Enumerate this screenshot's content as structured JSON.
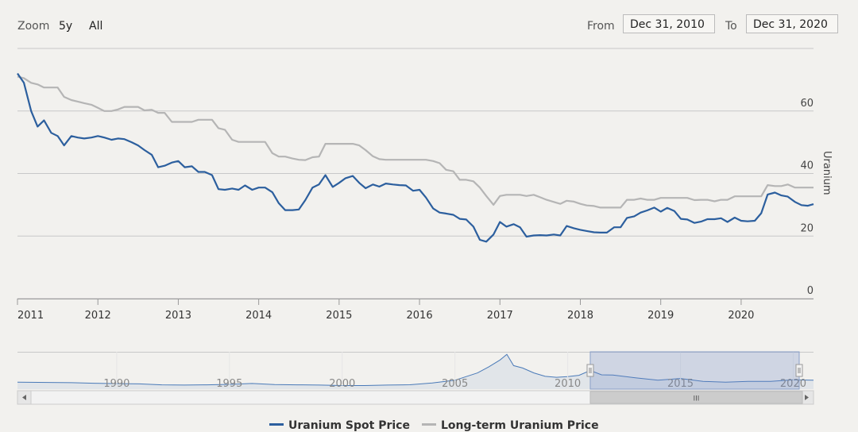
{
  "toolbar": {
    "zoom_label": "Zoom",
    "zoom_options": [
      "5y",
      "All"
    ],
    "from_label": "From",
    "from_value": "Dec 31, 2010",
    "to_label": "To",
    "to_value": "Dec 31, 2020"
  },
  "navigator": {
    "year_labels": [
      "1990",
      "1995",
      "2000",
      "2005",
      "2010",
      "2015",
      "2020"
    ],
    "scrollbar_grip": "III"
  },
  "chart_data": {
    "type": "line",
    "title": "",
    "ylabel": "Uranium",
    "ylim": [
      0,
      80
    ],
    "xlim": [
      2011.0,
      2020.9
    ],
    "x_ticks": [
      "2011",
      "2012",
      "2013",
      "2014",
      "2015",
      "2016",
      "2017",
      "2018",
      "2019",
      "2020"
    ],
    "y_ticks": [
      "0",
      "20",
      "40",
      "60"
    ],
    "legend_position": "bottom-center",
    "series": [
      {
        "name": "Uranium Spot Price",
        "color": "#2c5f9e",
        "points": [
          [
            2011.0,
            72
          ],
          [
            2011.08,
            69
          ],
          [
            2011.17,
            60
          ],
          [
            2011.25,
            55
          ],
          [
            2011.33,
            57
          ],
          [
            2011.42,
            53
          ],
          [
            2011.5,
            52
          ],
          [
            2011.58,
            49
          ],
          [
            2011.67,
            52
          ],
          [
            2011.75,
            51.5
          ],
          [
            2011.83,
            51.2
          ],
          [
            2011.92,
            51.5
          ],
          [
            2012.0,
            52
          ],
          [
            2012.08,
            51.5
          ],
          [
            2012.17,
            50.8
          ],
          [
            2012.25,
            51.2
          ],
          [
            2012.33,
            51
          ],
          [
            2012.42,
            50
          ],
          [
            2012.5,
            49
          ],
          [
            2012.58,
            47.5
          ],
          [
            2012.67,
            46
          ],
          [
            2012.75,
            42
          ],
          [
            2012.83,
            42.5
          ],
          [
            2012.92,
            43.5
          ],
          [
            2013.0,
            44
          ],
          [
            2013.08,
            42
          ],
          [
            2013.17,
            42.3
          ],
          [
            2013.25,
            40.5
          ],
          [
            2013.33,
            40.5
          ],
          [
            2013.42,
            39.5
          ],
          [
            2013.5,
            35
          ],
          [
            2013.58,
            34.8
          ],
          [
            2013.67,
            35.2
          ],
          [
            2013.75,
            34.8
          ],
          [
            2013.83,
            36.2
          ],
          [
            2013.92,
            34.8
          ],
          [
            2014.0,
            35.5
          ],
          [
            2014.08,
            35.5
          ],
          [
            2014.17,
            34
          ],
          [
            2014.25,
            30.5
          ],
          [
            2014.33,
            28.3
          ],
          [
            2014.42,
            28.3
          ],
          [
            2014.5,
            28.5
          ],
          [
            2014.58,
            31.5
          ],
          [
            2014.67,
            35.5
          ],
          [
            2014.75,
            36.5
          ],
          [
            2014.83,
            39.5
          ],
          [
            2014.92,
            35.7
          ],
          [
            2015.0,
            37
          ],
          [
            2015.08,
            38.5
          ],
          [
            2015.17,
            39.2
          ],
          [
            2015.25,
            37
          ],
          [
            2015.33,
            35.3
          ],
          [
            2015.42,
            36.5
          ],
          [
            2015.5,
            35.8
          ],
          [
            2015.58,
            36.8
          ],
          [
            2015.67,
            36.5
          ],
          [
            2015.75,
            36.3
          ],
          [
            2015.83,
            36.2
          ],
          [
            2015.92,
            34.5
          ],
          [
            2016.0,
            34.8
          ],
          [
            2016.08,
            32.3
          ],
          [
            2016.17,
            28.8
          ],
          [
            2016.25,
            27.5
          ],
          [
            2016.33,
            27.2
          ],
          [
            2016.42,
            26.8
          ],
          [
            2016.5,
            25.5
          ],
          [
            2016.58,
            25.3
          ],
          [
            2016.67,
            23
          ],
          [
            2016.75,
            18.8
          ],
          [
            2016.83,
            18.2
          ],
          [
            2016.92,
            20.5
          ],
          [
            2017.0,
            24.5
          ],
          [
            2017.08,
            23
          ],
          [
            2017.17,
            23.8
          ],
          [
            2017.25,
            22.8
          ],
          [
            2017.33,
            19.8
          ],
          [
            2017.42,
            20.2
          ],
          [
            2017.5,
            20.3
          ],
          [
            2017.58,
            20.2
          ],
          [
            2017.67,
            20.5
          ],
          [
            2017.75,
            20.2
          ],
          [
            2017.83,
            23.2
          ],
          [
            2017.92,
            22.5
          ],
          [
            2018.0,
            22
          ],
          [
            2018.08,
            21.6
          ],
          [
            2018.17,
            21.2
          ],
          [
            2018.25,
            21.1
          ],
          [
            2018.33,
            21.1
          ],
          [
            2018.42,
            22.8
          ],
          [
            2018.5,
            22.8
          ],
          [
            2018.58,
            25.8
          ],
          [
            2018.67,
            26.3
          ],
          [
            2018.75,
            27.5
          ],
          [
            2018.83,
            28.2
          ],
          [
            2018.92,
            29.1
          ],
          [
            2019.0,
            27.8
          ],
          [
            2019.08,
            29
          ],
          [
            2019.17,
            28
          ],
          [
            2019.25,
            25.5
          ],
          [
            2019.33,
            25.3
          ],
          [
            2019.42,
            24.2
          ],
          [
            2019.5,
            24.6
          ],
          [
            2019.58,
            25.4
          ],
          [
            2019.67,
            25.4
          ],
          [
            2019.75,
            25.7
          ],
          [
            2019.83,
            24.5
          ],
          [
            2019.92,
            25.9
          ],
          [
            2020.0,
            24.9
          ],
          [
            2020.08,
            24.7
          ],
          [
            2020.17,
            24.9
          ],
          [
            2020.25,
            27.3
          ],
          [
            2020.33,
            33.3
          ],
          [
            2020.42,
            33.9
          ],
          [
            2020.5,
            33
          ],
          [
            2020.58,
            32.6
          ],
          [
            2020.67,
            30.9
          ],
          [
            2020.75,
            29.9
          ],
          [
            2020.83,
            29.7
          ],
          [
            2020.9,
            30.2
          ]
        ]
      },
      {
        "name": "Long-term Uranium Price",
        "color": "#b5b5b5",
        "points": [
          [
            2011.0,
            71
          ],
          [
            2011.08,
            70.5
          ],
          [
            2011.17,
            69
          ],
          [
            2011.25,
            68.5
          ],
          [
            2011.33,
            67.5
          ],
          [
            2011.42,
            67.5
          ],
          [
            2011.5,
            67.5
          ],
          [
            2011.58,
            64.5
          ],
          [
            2011.67,
            63.5
          ],
          [
            2011.75,
            63
          ],
          [
            2011.83,
            62.5
          ],
          [
            2011.92,
            62
          ],
          [
            2012.0,
            61
          ],
          [
            2012.08,
            60
          ],
          [
            2012.17,
            60
          ],
          [
            2012.25,
            60.5
          ],
          [
            2012.33,
            61.3
          ],
          [
            2012.42,
            61.3
          ],
          [
            2012.5,
            61.3
          ],
          [
            2012.58,
            60.2
          ],
          [
            2012.67,
            60.4
          ],
          [
            2012.75,
            59.4
          ],
          [
            2012.83,
            59.4
          ],
          [
            2012.92,
            56.5
          ],
          [
            2013.0,
            56.5
          ],
          [
            2013.08,
            56.5
          ],
          [
            2013.17,
            56.5
          ],
          [
            2013.25,
            57.2
          ],
          [
            2013.33,
            57.2
          ],
          [
            2013.42,
            57.2
          ],
          [
            2013.5,
            54.5
          ],
          [
            2013.58,
            54
          ],
          [
            2013.67,
            50.8
          ],
          [
            2013.75,
            50.1
          ],
          [
            2013.83,
            50.1
          ],
          [
            2013.92,
            50.1
          ],
          [
            2014.0,
            50.1
          ],
          [
            2014.08,
            50.1
          ],
          [
            2014.17,
            46.5
          ],
          [
            2014.25,
            45.4
          ],
          [
            2014.33,
            45.4
          ],
          [
            2014.42,
            44.8
          ],
          [
            2014.5,
            44.4
          ],
          [
            2014.58,
            44.3
          ],
          [
            2014.67,
            45.2
          ],
          [
            2014.75,
            45.4
          ],
          [
            2014.83,
            49.5
          ],
          [
            2014.92,
            49.5
          ],
          [
            2015.0,
            49.5
          ],
          [
            2015.08,
            49.5
          ],
          [
            2015.17,
            49.5
          ],
          [
            2015.25,
            49
          ],
          [
            2015.33,
            47.5
          ],
          [
            2015.42,
            45.5
          ],
          [
            2015.5,
            44.6
          ],
          [
            2015.58,
            44.4
          ],
          [
            2015.67,
            44.4
          ],
          [
            2015.75,
            44.4
          ],
          [
            2015.83,
            44.4
          ],
          [
            2015.92,
            44.4
          ],
          [
            2016.0,
            44.4
          ],
          [
            2016.08,
            44.4
          ],
          [
            2016.17,
            44
          ],
          [
            2016.25,
            43.3
          ],
          [
            2016.33,
            41.2
          ],
          [
            2016.42,
            40.7
          ],
          [
            2016.5,
            38
          ],
          [
            2016.58,
            38
          ],
          [
            2016.67,
            37.5
          ],
          [
            2016.75,
            35.5
          ],
          [
            2016.83,
            32.8
          ],
          [
            2016.92,
            30
          ],
          [
            2017.0,
            32.8
          ],
          [
            2017.08,
            33.2
          ],
          [
            2017.17,
            33.2
          ],
          [
            2017.25,
            33.2
          ],
          [
            2017.33,
            32.8
          ],
          [
            2017.42,
            33.2
          ],
          [
            2017.5,
            32.4
          ],
          [
            2017.58,
            31.6
          ],
          [
            2017.67,
            30.9
          ],
          [
            2017.75,
            30.3
          ],
          [
            2017.83,
            31.3
          ],
          [
            2017.92,
            31
          ],
          [
            2018.0,
            30.3
          ],
          [
            2018.08,
            29.8
          ],
          [
            2018.17,
            29.6
          ],
          [
            2018.25,
            29.1
          ],
          [
            2018.33,
            29.1
          ],
          [
            2018.42,
            29.1
          ],
          [
            2018.5,
            29.1
          ],
          [
            2018.58,
            31.6
          ],
          [
            2018.67,
            31.6
          ],
          [
            2018.75,
            32
          ],
          [
            2018.83,
            31.6
          ],
          [
            2018.92,
            31.6
          ],
          [
            2019.0,
            32.2
          ],
          [
            2019.08,
            32.2
          ],
          [
            2019.17,
            32.2
          ],
          [
            2019.25,
            32.2
          ],
          [
            2019.33,
            32.2
          ],
          [
            2019.42,
            31.5
          ],
          [
            2019.5,
            31.6
          ],
          [
            2019.58,
            31.6
          ],
          [
            2019.67,
            31.1
          ],
          [
            2019.75,
            31.6
          ],
          [
            2019.83,
            31.6
          ],
          [
            2019.92,
            32.7
          ],
          [
            2020.0,
            32.7
          ],
          [
            2020.08,
            32.7
          ],
          [
            2020.17,
            32.7
          ],
          [
            2020.25,
            32.7
          ],
          [
            2020.33,
            36.3
          ],
          [
            2020.42,
            36
          ],
          [
            2020.5,
            36
          ],
          [
            2020.58,
            36.5
          ],
          [
            2020.67,
            35.5
          ],
          [
            2020.75,
            35.5
          ],
          [
            2020.83,
            35.5
          ],
          [
            2020.9,
            35.5
          ]
        ]
      }
    ],
    "navigator_series": {
      "name": "Uranium Spot Price",
      "xlim": [
        1985.6,
        2020.9
      ],
      "selected_range": [
        2011.0,
        2020.9
      ],
      "points": [
        [
          1985.6,
          22
        ],
        [
          1987,
          21
        ],
        [
          1988,
          20
        ],
        [
          1989,
          17.5
        ],
        [
          1990,
          16
        ],
        [
          1991,
          15
        ],
        [
          1992,
          11
        ],
        [
          1993,
          10
        ],
        [
          1994,
          11
        ],
        [
          1995,
          13
        ],
        [
          1996,
          16.5
        ],
        [
          1997,
          12
        ],
        [
          1998,
          11
        ],
        [
          1999,
          10
        ],
        [
          2000,
          8
        ],
        [
          2001,
          8.3
        ],
        [
          2002,
          10
        ],
        [
          2003,
          11.5
        ],
        [
          2004,
          19
        ],
        [
          2005,
          30
        ],
        [
          2006,
          60
        ],
        [
          2006.5,
          85
        ],
        [
          2007,
          113
        ],
        [
          2007.3,
          136
        ],
        [
          2007.6,
          90
        ],
        [
          2008,
          80
        ],
        [
          2008.5,
          60
        ],
        [
          2009,
          46
        ],
        [
          2009.5,
          42
        ],
        [
          2010,
          45
        ],
        [
          2010.5,
          50
        ],
        [
          2011,
          70
        ],
        [
          2011.5,
          52
        ],
        [
          2012,
          51
        ],
        [
          2013,
          40
        ],
        [
          2014,
          30
        ],
        [
          2015,
          37
        ],
        [
          2016,
          25
        ],
        [
          2017,
          22
        ],
        [
          2018,
          25
        ],
        [
          2019,
          25
        ],
        [
          2020,
          32
        ],
        [
          2020.9,
          30
        ]
      ]
    }
  }
}
